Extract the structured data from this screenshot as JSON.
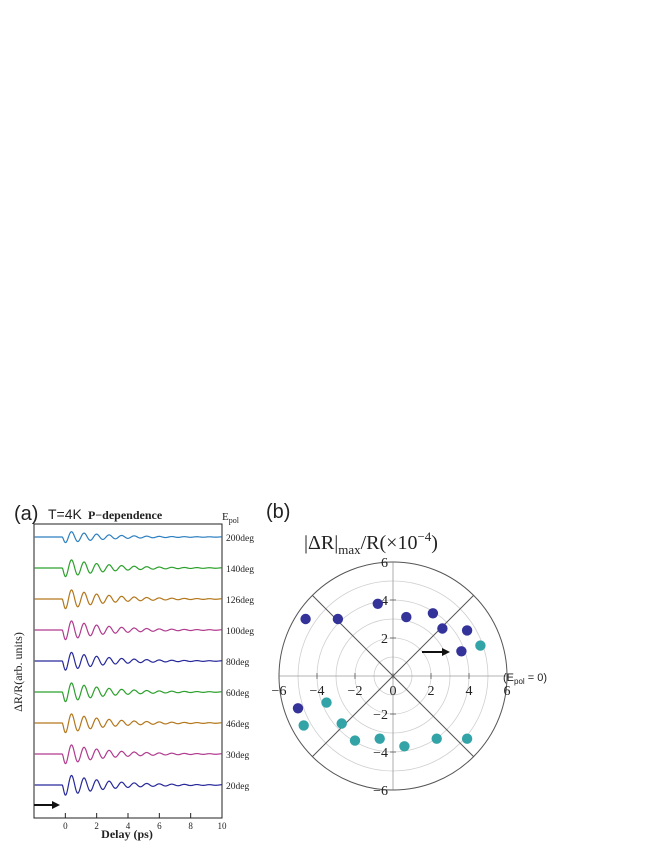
{
  "panel_a": {
    "label": "(a)",
    "temperature": "T=4K",
    "title": "P−dependence",
    "legend_header": "E",
    "legend_header_sub": "pol",
    "ylabel": "ΔR/R(arb. units)",
    "xlabel": "Delay (ps)"
  },
  "panel_b": {
    "label": "(b)",
    "title_pre": "|ΔR|",
    "title_sub": "max",
    "title_post": "/R(×10",
    "title_sup": "−4",
    "title_close": ")",
    "ref_label_pre": "(E",
    "ref_label_sub": "pol",
    "ref_label_post": " = 0)"
  },
  "colors": {
    "blue": "#2c7fc0",
    "green": "#2ca02c",
    "orange": "#b3771c",
    "magenta": "#b03b8f",
    "navy": "#27299a",
    "dark_blue": "#34339a",
    "teal": "#32a3a6"
  },
  "chart_data": [
    {
      "type": "line",
      "panel": "a",
      "x_ticks": [
        0,
        2,
        4,
        6,
        8,
        10
      ],
      "xlim": [
        -2,
        10
      ],
      "series": [
        {
          "name": "200deg",
          "color": "#2c7fc0",
          "amplitude": 0.55
        },
        {
          "name": "140deg",
          "color": "#2ca02c",
          "amplitude": 0.85
        },
        {
          "name": "126deg",
          "color": "#b3771c",
          "amplitude": 0.95
        },
        {
          "name": "100deg",
          "color": "#b03b8f",
          "amplitude": 0.95
        },
        {
          "name": "80deg",
          "color": "#27299a",
          "amplitude": 0.9
        },
        {
          "name": "60deg",
          "color": "#2ca02c",
          "amplitude": 0.95
        },
        {
          "name": "46deg",
          "color": "#b3771c",
          "amplitude": 0.95
        },
        {
          "name": "30deg",
          "color": "#b03b8f",
          "amplitude": 0.95
        },
        {
          "name": "20deg",
          "color": "#27299a",
          "amplitude": 1.0
        }
      ]
    },
    {
      "type": "scatter",
      "panel": "b",
      "xlim": [
        -6,
        6
      ],
      "ylim": [
        -6,
        6
      ],
      "x_ticks": [
        -6,
        -4,
        -2,
        0,
        2,
        4,
        6
      ],
      "y_ticks": [
        -6,
        -4,
        -2,
        2,
        4,
        6
      ],
      "series": [
        {
          "color": "#34339a",
          "points": [
            [
              -4.6,
              3.0
            ],
            [
              -2.9,
              3.0
            ],
            [
              -0.8,
              3.8
            ],
            [
              0.7,
              3.1
            ],
            [
              2.1,
              3.3
            ],
            [
              2.6,
              2.5
            ],
            [
              3.9,
              2.4
            ],
            [
              3.6,
              1.3
            ],
            [
              -5.0,
              -1.7
            ]
          ]
        },
        {
          "color": "#32a3a6",
          "points": [
            [
              4.6,
              1.6
            ],
            [
              -3.5,
              -1.4
            ],
            [
              -4.7,
              -2.6
            ],
            [
              -2.7,
              -2.5
            ],
            [
              -2.0,
              -3.4
            ],
            [
              -0.7,
              -3.3
            ],
            [
              0.6,
              -3.7
            ],
            [
              2.3,
              -3.3
            ],
            [
              3.9,
              -3.3
            ]
          ]
        }
      ]
    }
  ]
}
